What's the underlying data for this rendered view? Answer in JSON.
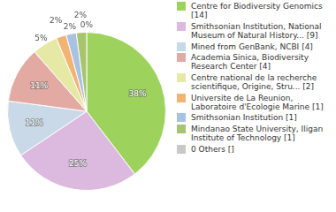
{
  "chart_data": {
    "type": "pie",
    "categories": [
      "Centre for Biodiversity Genomics [14]",
      "Smithsonian Institution, National Museum of Natural History... [9]",
      "Mined from GenBank, NCBI [4]",
      "Academia Sinica, Biodiversity Research Center [4]",
      "Centre national de la recherche scientifique, Origine, Stru... [2]",
      "Universite de La Reunion, Laboratoire d'Ecologie Marine [1]",
      "Smithsonian Institution [1]",
      "Mindanao State University, Iligan Institute of Technology [1]",
      "0 Others []"
    ],
    "values": [
      38,
      25,
      11,
      11,
      5,
      2,
      2,
      2,
      0
    ],
    "value_labels": [
      "38%",
      "25%",
      "11%",
      "11%",
      "5%",
      "2%",
      "2%",
      "2%",
      "0%"
    ],
    "colors": [
      "#9dd35d",
      "#dcbadf",
      "#c9d9e8",
      "#e2aaa2",
      "#e6e8a6",
      "#f2b472",
      "#a9c1e2",
      "#a6c56e",
      "#c8c8c8"
    ],
    "data_labels": true,
    "legend": "right"
  }
}
